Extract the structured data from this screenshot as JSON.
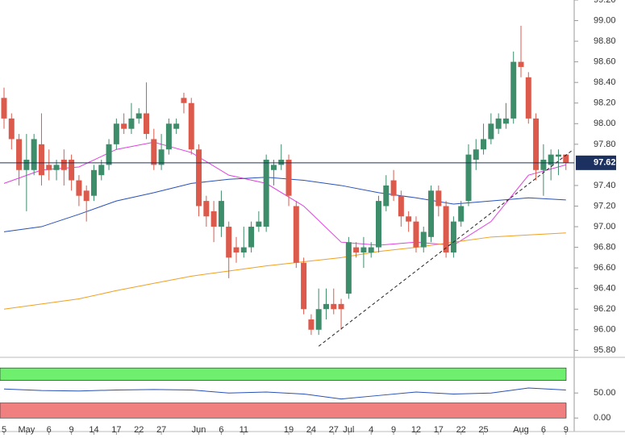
{
  "chart_data": {
    "type": "candlestick",
    "categories": [
      "5",
      null,
      null,
      "May",
      null,
      null,
      "6",
      null,
      null,
      "9",
      null,
      null,
      "14",
      null,
      null,
      "17",
      null,
      null,
      "22",
      null,
      null,
      "27",
      null,
      null,
      null,
      null,
      "Jun",
      null,
      null,
      "6",
      null,
      null,
      "11",
      null,
      null,
      null,
      null,
      null,
      "19",
      null,
      null,
      "24",
      null,
      null,
      "27",
      null,
      "Jul",
      null,
      null,
      "4",
      null,
      null,
      "9",
      null,
      null,
      "12",
      null,
      null,
      "17",
      null,
      null,
      "22",
      null,
      null,
      "25",
      null,
      null,
      null,
      null,
      "Aug",
      null,
      null,
      "6",
      null,
      null,
      "9"
    ],
    "open": [
      98.25,
      98.05,
      97.85,
      97.55,
      97.55,
      97.8,
      97.6,
      97.55,
      97.65,
      97.65,
      97.45,
      97.35,
      97.3,
      97.5,
      97.6,
      97.8,
      98.0,
      97.95,
      98.05,
      98.1,
      97.85,
      97.6,
      97.75,
      97.95,
      98.25,
      98.2,
      97.75,
      97.25,
      97.15,
      97.0,
      97.0,
      96.8,
      96.75,
      96.8,
      97.0,
      97.0,
      97.55,
      97.6,
      97.65,
      97.2,
      96.65,
      96.1,
      96.0,
      96.2,
      96.25,
      96.25,
      96.35,
      96.8,
      96.75,
      96.75,
      96.8,
      97.2,
      97.45,
      97.3,
      97.1,
      97.05,
      96.8,
      96.9,
      97.35,
      97.2,
      96.75,
      97.05,
      97.25,
      97.65,
      97.75,
      97.85,
      97.95,
      98.0,
      98.05,
      98.6,
      98.45,
      98.05,
      97.55,
      97.6,
      97.68,
      97.7
    ],
    "high": [
      98.35,
      98.1,
      97.9,
      97.9,
      97.9,
      98.1,
      97.75,
      97.65,
      97.75,
      97.7,
      97.5,
      97.4,
      97.6,
      97.65,
      97.85,
      98.05,
      98.1,
      98.2,
      98.15,
      98.4,
      97.95,
      97.9,
      98.05,
      98.05,
      98.3,
      98.25,
      97.8,
      97.3,
      97.25,
      97.35,
      97.05,
      96.9,
      97.0,
      97.05,
      97.15,
      97.7,
      97.65,
      97.8,
      97.7,
      97.25,
      96.7,
      96.15,
      96.4,
      96.4,
      96.4,
      96.3,
      96.9,
      96.85,
      96.9,
      96.85,
      97.3,
      97.5,
      97.55,
      97.35,
      97.15,
      97.1,
      97.0,
      97.4,
      97.4,
      97.25,
      97.1,
      97.25,
      97.8,
      97.85,
      98.0,
      98.1,
      98.1,
      98.2,
      98.7,
      98.95,
      98.5,
      98.1,
      97.8,
      97.75,
      97.75,
      97.7
    ],
    "low": [
      97.95,
      97.75,
      97.4,
      97.15,
      97.5,
      97.4,
      97.45,
      97.45,
      97.4,
      97.35,
      97.2,
      97.05,
      97.25,
      97.45,
      97.55,
      97.75,
      97.9,
      97.9,
      98.0,
      97.85,
      97.55,
      97.55,
      97.7,
      97.9,
      98.1,
      97.7,
      97.1,
      97.0,
      96.85,
      96.9,
      96.5,
      96.65,
      96.7,
      96.75,
      96.95,
      96.95,
      97.4,
      97.55,
      97.2,
      96.6,
      96.15,
      95.95,
      95.95,
      96.1,
      96.15,
      96.0,
      96.3,
      96.7,
      96.6,
      96.7,
      96.75,
      97.15,
      97.25,
      97.0,
      96.95,
      96.75,
      96.75,
      96.85,
      97.1,
      96.7,
      96.7,
      97.0,
      97.2,
      97.55,
      97.7,
      97.8,
      97.9,
      97.95,
      98.0,
      98.45,
      98.0,
      97.45,
      97.3,
      97.45,
      97.5,
      97.55
    ],
    "close": [
      98.05,
      97.85,
      97.55,
      97.65,
      97.85,
      97.5,
      97.55,
      97.6,
      97.55,
      97.45,
      97.3,
      97.25,
      97.55,
      97.6,
      97.8,
      98.0,
      97.95,
      98.05,
      98.1,
      97.9,
      97.6,
      97.75,
      98.0,
      98.0,
      98.2,
      97.75,
      97.2,
      97.1,
      97.0,
      97.25,
      96.7,
      96.75,
      96.8,
      97.0,
      97.05,
      97.65,
      97.6,
      97.65,
      97.3,
      96.65,
      96.2,
      96.0,
      96.2,
      96.25,
      96.2,
      96.2,
      96.85,
      96.75,
      96.8,
      96.8,
      97.25,
      97.4,
      97.3,
      97.1,
      97.05,
      96.8,
      96.95,
      97.35,
      97.2,
      96.75,
      97.05,
      97.2,
      97.7,
      97.75,
      97.85,
      98.0,
      98.05,
      98.05,
      98.6,
      98.55,
      98.05,
      97.55,
      97.65,
      97.7,
      97.7,
      97.62
    ],
    "up_color": "#3d8c6a",
    "down_color": "#dc5a4c",
    "overlays": [
      {
        "color": "#e040e0",
        "x": [
          0,
          5,
          10,
          15,
          20,
          25,
          30,
          35,
          40,
          45,
          50,
          55,
          60,
          65,
          70,
          75
        ],
        "values": [
          97.42,
          97.55,
          97.58,
          97.75,
          97.82,
          97.72,
          97.5,
          97.42,
          97.2,
          96.85,
          96.82,
          96.85,
          96.82,
          97.05,
          97.5,
          97.6
        ]
      },
      {
        "color": "#2850b8",
        "x": [
          0,
          5,
          10,
          15,
          20,
          25,
          30,
          35,
          40,
          45,
          50,
          55,
          60,
          65,
          70,
          75
        ],
        "values": [
          96.95,
          97.0,
          97.12,
          97.25,
          97.33,
          97.42,
          97.46,
          97.48,
          97.45,
          97.4,
          97.33,
          97.28,
          97.22,
          97.25,
          97.28,
          97.26
        ]
      },
      {
        "color": "#f0a020",
        "x": [
          0,
          5,
          10,
          15,
          20,
          25,
          30,
          35,
          40,
          45,
          50,
          55,
          60,
          65,
          70,
          75
        ],
        "values": [
          96.2,
          96.25,
          96.3,
          96.38,
          96.45,
          96.52,
          96.57,
          96.62,
          96.66,
          96.7,
          96.76,
          96.8,
          96.85,
          96.9,
          96.92,
          96.94
        ]
      }
    ],
    "trendline": {
      "x": [
        42,
        76
      ],
      "values": [
        95.84,
        97.75
      ]
    },
    "last_price": 97.62,
    "ylim": [
      95.74,
      99.2
    ],
    "yticks": [
      {
        "value": 99.2,
        "label": "99.20"
      },
      {
        "value": 99.0,
        "label": "99.00"
      },
      {
        "value": 98.8,
        "label": "98.80"
      },
      {
        "value": 98.6,
        "label": "98.60"
      },
      {
        "value": 98.4,
        "label": "98.40"
      },
      {
        "value": 98.2,
        "label": "98.20"
      },
      {
        "value": 98.0,
        "label": "98.00"
      },
      {
        "value": 97.8,
        "label": "97.80"
      },
      {
        "value": 97.4,
        "label": "97.40"
      },
      {
        "value": 97.2,
        "label": "97.20"
      },
      {
        "value": 97.0,
        "label": "97.00"
      },
      {
        "value": 96.8,
        "label": "96.80"
      },
      {
        "value": 96.6,
        "label": "96.60"
      },
      {
        "value": 96.4,
        "label": "96.40"
      },
      {
        "value": 96.2,
        "label": "96.20"
      },
      {
        "value": 96.0,
        "label": "96.00"
      },
      {
        "value": 95.8,
        "label": "95.80"
      }
    ],
    "oscillator": {
      "color": "#2850b8",
      "x": [
        0,
        5,
        10,
        15,
        20,
        25,
        30,
        35,
        40,
        45,
        50,
        55,
        60,
        65,
        70,
        75
      ],
      "values": [
        58,
        55,
        54,
        56,
        57,
        56,
        50,
        52,
        48,
        38,
        45,
        52,
        48,
        50,
        60,
        56
      ],
      "ylim": [
        -27,
        118
      ],
      "yticks": [
        {
          "value": 50,
          "label": "50.00"
        },
        {
          "value": 0,
          "label": "0.00"
        }
      ],
      "bands": [
        {
          "range": [
            75,
            100
          ],
          "color": "#6ef06e"
        },
        {
          "range": [
            0,
            30
          ],
          "color": "#f08080"
        }
      ]
    }
  }
}
